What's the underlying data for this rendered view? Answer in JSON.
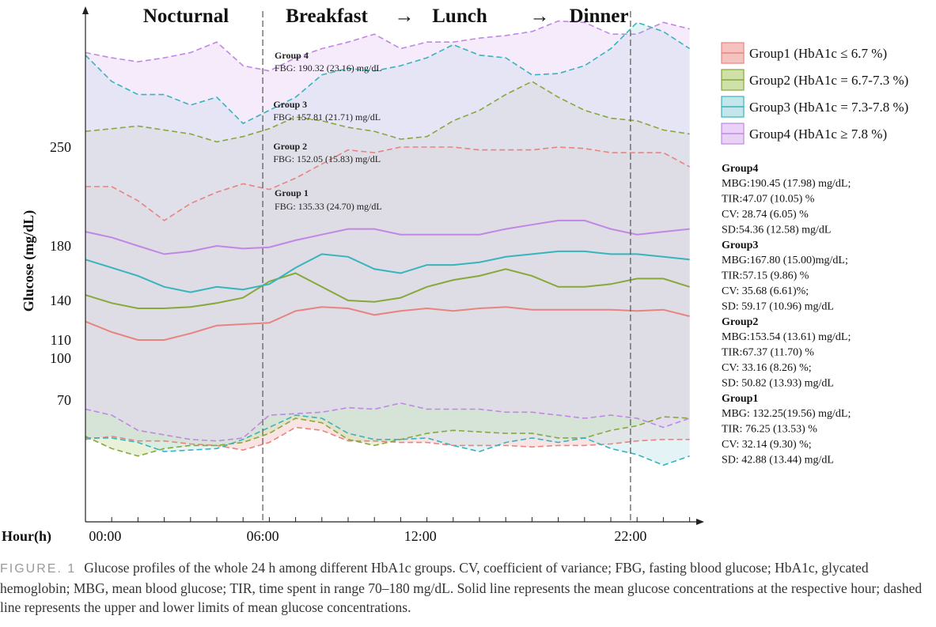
{
  "chart_data": {
    "type": "area",
    "ylabel": "Glucose (mg/dL)",
    "xlabel": "Hour(h)",
    "x_ticks": [
      {
        "label": "00:00",
        "hour": 0.75
      },
      {
        "label": "06:00",
        "hour": 6.75
      },
      {
        "label": "12:00",
        "hour": 12.75
      },
      {
        "label": "22:00",
        "hour": 20.75
      }
    ],
    "y_ticks": [
      70,
      100,
      110,
      140,
      180,
      250
    ],
    "phase_labels": [
      "Nocturnal",
      "Breakfast",
      "→",
      "Lunch",
      "→",
      "Dinner"
    ],
    "vertical_lines_hour": [
      6.75,
      20.75
    ],
    "hours": [
      0,
      1,
      2,
      3,
      4,
      5,
      6,
      7,
      8,
      9,
      10,
      11,
      12,
      13,
      14,
      15,
      16,
      17,
      18,
      19,
      20,
      21,
      22,
      23
    ],
    "series": [
      {
        "name": "Group1 (HbA1c ≤ 6.7 %)",
        "color": "#e88480",
        "fill": "#f4c3c0",
        "mean": [
          124,
          116,
          110,
          110,
          115,
          121,
          122,
          123,
          132,
          135,
          134,
          129,
          132,
          134,
          132,
          134,
          135,
          133,
          133,
          133,
          133,
          132,
          133,
          128
        ],
        "upper": [
          222,
          222,
          212,
          198,
          210,
          218,
          224,
          220,
          228,
          238,
          248,
          246,
          250,
          250,
          250,
          248,
          248,
          248,
          250,
          249,
          246,
          246,
          246,
          236
        ],
        "lower": [
          44,
          46,
          43,
          43,
          41,
          40,
          37,
          42,
          52,
          50,
          43,
          43,
          42,
          42,
          40,
          40,
          40,
          39,
          40,
          40,
          41,
          43,
          44,
          44
        ]
      },
      {
        "name": "Group2 (HbA1c = 6.7-7.3 %)",
        "color": "#87a83a",
        "fill": "#cfe0a8",
        "mean": [
          144,
          138,
          134,
          134,
          135,
          138,
          142,
          154,
          160,
          150,
          140,
          139,
          142,
          150,
          155,
          158,
          163,
          158,
          150,
          150,
          152,
          156,
          156,
          150
        ],
        "upper": [
          262,
          264,
          266,
          263,
          260,
          254,
          258,
          264,
          273,
          270,
          265,
          262,
          256,
          258,
          270,
          278,
          290,
          300,
          288,
          278,
          272,
          270,
          263,
          260
        ],
        "lower": [
          46,
          38,
          33,
          38,
          40,
          40,
          42,
          48,
          58,
          55,
          44,
          40,
          44,
          48,
          50,
          49,
          48,
          48,
          45,
          45,
          50,
          53,
          59,
          58
        ]
      },
      {
        "name": "Group3 (HbA1c = 7.3-7.8 %)",
        "color": "#37b4bc",
        "fill": "#c3e6ea",
        "mean": [
          170,
          164,
          158,
          150,
          146,
          150,
          148,
          152,
          164,
          174,
          172,
          163,
          160,
          166,
          166,
          168,
          172,
          174,
          176,
          176,
          174,
          174,
          172,
          170
        ],
        "upper": [
          320,
          300,
          290,
          290,
          282,
          288,
          268,
          278,
          288,
          305,
          310,
          308,
          312,
          318,
          328,
          320,
          318,
          305,
          306,
          312,
          325,
          345,
          338,
          325
        ],
        "lower": [
          45,
          45,
          42,
          36,
          37,
          38,
          44,
          52,
          60,
          58,
          48,
          44,
          44,
          45,
          40,
          36,
          42,
          45,
          42,
          45,
          38,
          34,
          27,
          33
        ]
      },
      {
        "name": "Group4 (HbA1c  ≥ 7.8 %)",
        "color": "#c187e4",
        "fill": "#e8d3f6",
        "mean": [
          190,
          186,
          180,
          174,
          176,
          180,
          178,
          179,
          184,
          188,
          192,
          192,
          188,
          188,
          188,
          188,
          192,
          195,
          198,
          198,
          192,
          188,
          190,
          192
        ],
        "upper": [
          322,
          318,
          315,
          318,
          322,
          330,
          312,
          308,
          318,
          325,
          330,
          336,
          325,
          330,
          330,
          333,
          335,
          338,
          346,
          345,
          336,
          336,
          345,
          340
        ],
        "lower": [
          64,
          60,
          50,
          47,
          44,
          43,
          45,
          60,
          61,
          62,
          65,
          64,
          68,
          64,
          64,
          64,
          62,
          62,
          60,
          58,
          60,
          58,
          52,
          58
        ]
      }
    ],
    "fbg_labels": [
      {
        "title": "Group 4",
        "text": "FBG: 190.32 (23.16) mg/dL",
        "hour": 7.2
      },
      {
        "title": "Group 3",
        "text": "FBG: 157.81 (21.71) mg/dL",
        "hour": 7.15
      },
      {
        "title": "Group 2",
        "text": "FBG: 152.05 (15.83) mg/dL",
        "hour": 7.15
      },
      {
        "title": "Group 1",
        "text": " FBG: 135.33 (24.70) mg/dL",
        "hour": 7.2
      }
    ],
    "stats": [
      {
        "title": "Group4",
        "lines": [
          "MBG:190.45 (17.98) mg/dL;",
          "TIR:47.07 (10.05) %",
          "CV: 28.74 (6.05) %",
          "SD:54.36 (12.58) mg/dL"
        ]
      },
      {
        "title": "Group3",
        "lines": [
          "MBG:167.80 (15.00)mg/dL;",
          "TIR:57.15 (9.86) %",
          "CV: 35.68 (6.61)%;",
          "SD: 59.17 (10.96) mg/dL"
        ]
      },
      {
        "title": "Group2",
        "lines": [
          "MBG:153.54 (13.61) mg/dL;",
          "TIR:67.37 (11.70) %",
          "CV: 33.16 (8.26) %;",
          "SD: 50.82 (13.93) mg/dL"
        ]
      },
      {
        "title": "Group1",
        "lines": [
          "MBG: 132.25(19.56)  mg/dL;",
          "TIR: 76.25 (13.53) %",
          "CV: 32.14 (9.30) %;",
          "SD: 42.88 (13.44) mg/dL"
        ]
      }
    ],
    "legend_position": "top-right"
  },
  "caption": {
    "label": "FIGURE. 1",
    "text": "Glucose profiles of the whole 24 h among different HbA1c groups. CV, coefficient of variance; FBG, fasting blood glucose; HbA1c, glycated hemoglobin; MBG, mean blood glucose; TIR, time spent in range 70–180 mg/dL. Solid line represents the mean glucose concentrations at the respective hour; dashed line represents the upper and lower limits of mean glucose concentrations."
  }
}
